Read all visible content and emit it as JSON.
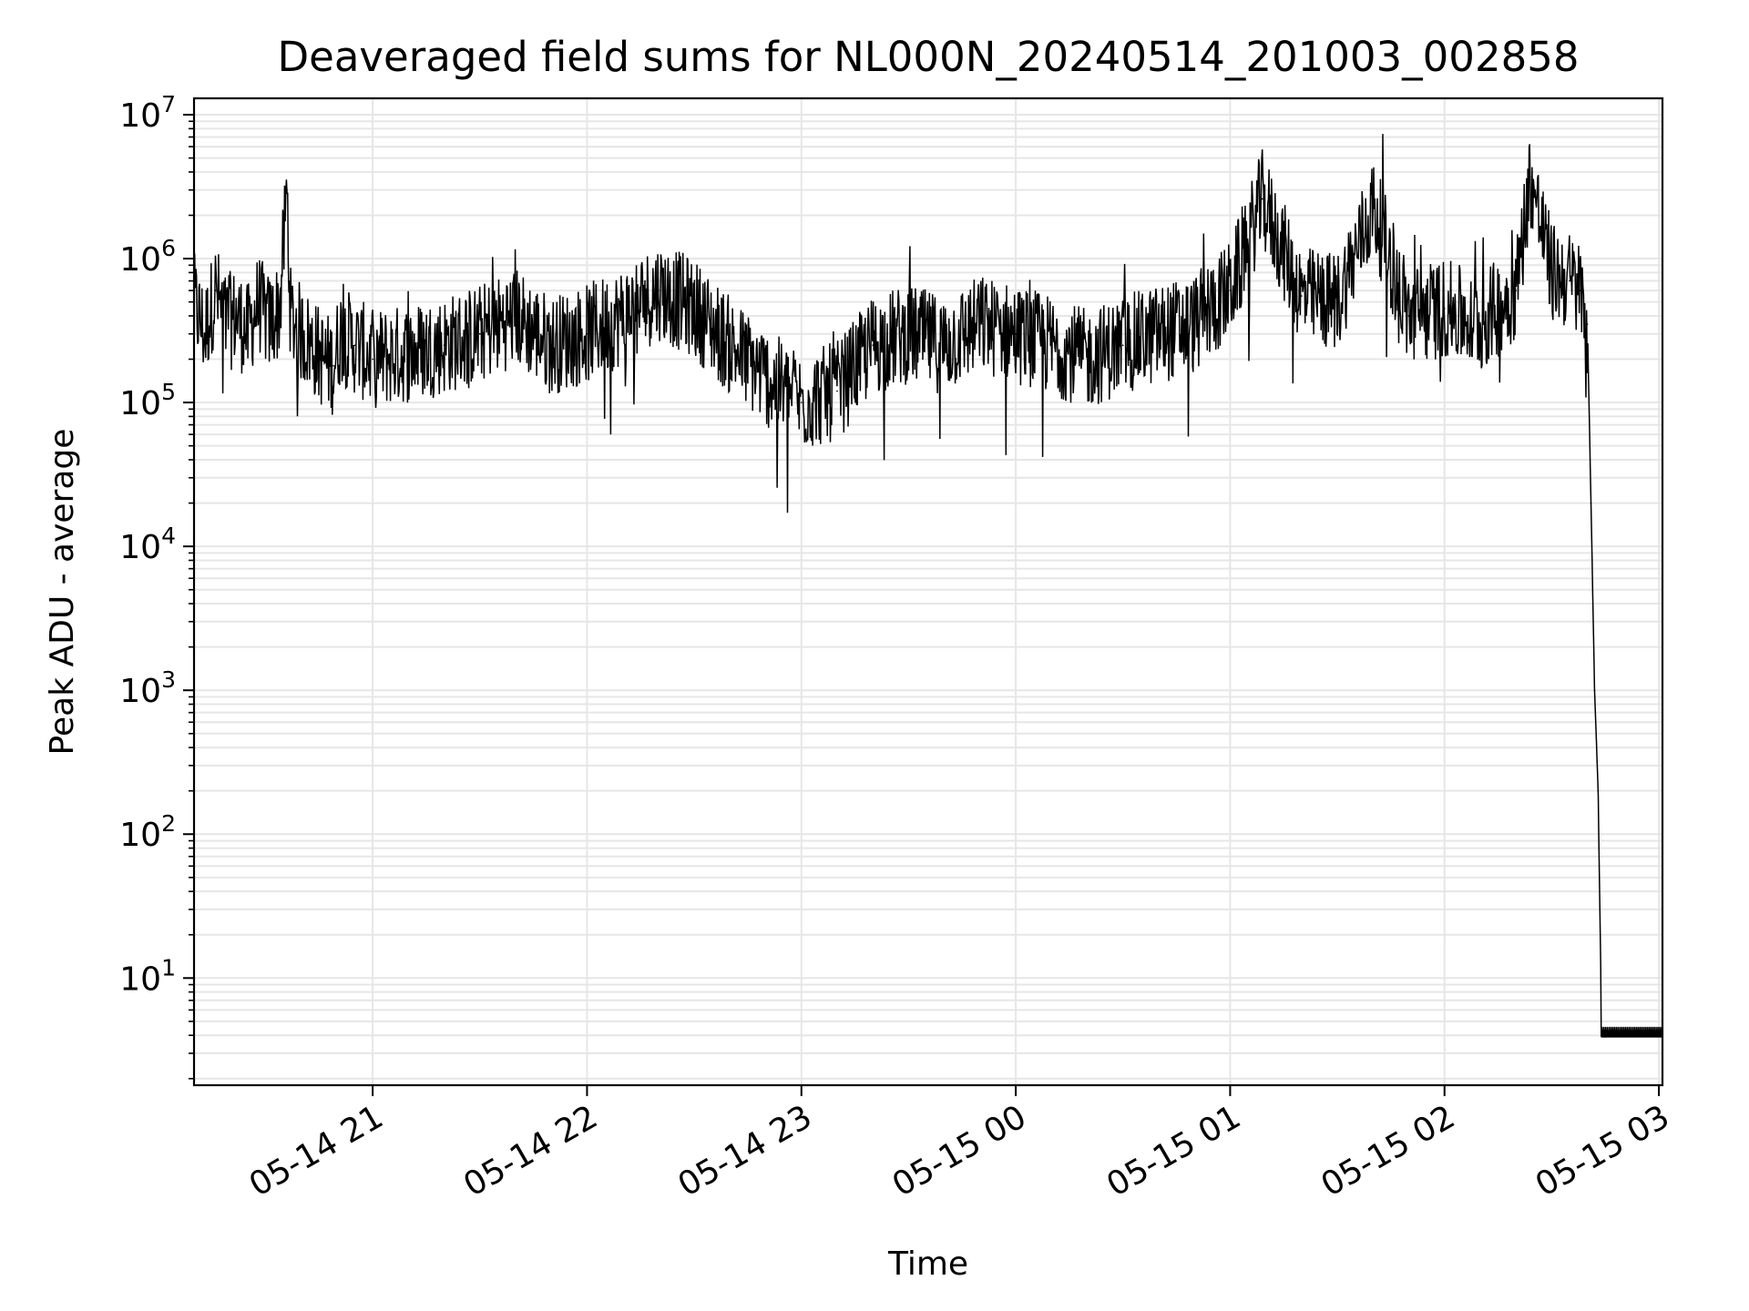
{
  "chart_data": {
    "type": "line",
    "title": "Deaveraged field sums for NL000N_20240514_201003_002858",
    "xlabel": "Time",
    "ylabel": "Peak ADU - average",
    "y_scale": "log",
    "ylim": [
      1.8,
      13000000
    ],
    "xlim": [
      "2024-05-14 20:10",
      "2024-05-15 03:01"
    ],
    "x_ticks": [
      {
        "label": "05-14 21",
        "value": "2024-05-14 21:00"
      },
      {
        "label": "05-14 22",
        "value": "2024-05-14 22:00"
      },
      {
        "label": "05-14 23",
        "value": "2024-05-14 23:00"
      },
      {
        "label": "05-15 00",
        "value": "2024-05-15 00:00"
      },
      {
        "label": "05-15 01",
        "value": "2024-05-15 01:00"
      },
      {
        "label": "05-15 02",
        "value": "2024-05-15 02:00"
      },
      {
        "label": "05-15 03",
        "value": "2024-05-15 03:00"
      }
    ],
    "y_ticks": [
      {
        "base": "10",
        "exp": "1",
        "value": 10
      },
      {
        "base": "10",
        "exp": "2",
        "value": 100
      },
      {
        "base": "10",
        "exp": "3",
        "value": 1000
      },
      {
        "base": "10",
        "exp": "4",
        "value": 10000
      },
      {
        "base": "10",
        "exp": "5",
        "value": 100000
      },
      {
        "base": "10",
        "exp": "6",
        "value": 1000000
      },
      {
        "base": "10",
        "exp": "7",
        "value": 10000000
      }
    ],
    "grid": true,
    "line_color": "#000000",
    "grid_color": "#e6e6e6",
    "series": [
      {
        "x": [
          "2024-05-14 20:10",
          "2024-05-14 20:13",
          "2024-05-14 20:16",
          "2024-05-14 20:19",
          "2024-05-14 20:22",
          "2024-05-14 20:25",
          "2024-05-14 20:28",
          "2024-05-14 20:31",
          "2024-05-14 20:34",
          "2024-05-14 20:36",
          "2024-05-14 20:37",
          "2024-05-14 20:40",
          "2024-05-14 20:43",
          "2024-05-14 20:46",
          "2024-05-14 20:49",
          "2024-05-14 20:51",
          "2024-05-14 20:55",
          "2024-05-14 21:00",
          "2024-05-14 21:10",
          "2024-05-14 21:20",
          "2024-05-14 21:30",
          "2024-05-14 21:40",
          "2024-05-14 21:50",
          "2024-05-14 22:00",
          "2024-05-14 22:10",
          "2024-05-14 22:20",
          "2024-05-14 22:30",
          "2024-05-14 22:40",
          "2024-05-14 22:50",
          "2024-05-14 23:00",
          "2024-05-14 23:10",
          "2024-05-14 23:20",
          "2024-05-14 23:30",
          "2024-05-14 23:40",
          "2024-05-14 23:50",
          "2024-05-15 00:00",
          "2024-05-15 00:10",
          "2024-05-15 00:20",
          "2024-05-15 00:30",
          "2024-05-15 00:40",
          "2024-05-15 00:50",
          "2024-05-15 01:00",
          "2024-05-15 01:09",
          "2024-05-15 01:20",
          "2024-05-15 01:30",
          "2024-05-15 01:40",
          "2024-05-15 01:50",
          "2024-05-15 02:00",
          "2024-05-15 02:10",
          "2024-05-15 02:20",
          "2024-05-15 02:24",
          "2024-05-15 02:30",
          "2024-05-15 02:35",
          "2024-05-15 02:38",
          "2024-05-15 02:40",
          "2024-05-15 02:41",
          "2024-05-15 02:42",
          "2024-05-15 02:43",
          "2024-05-15 02:44",
          "2024-05-15 02:45",
          "2024-05-15 03:01"
        ],
        "y": [
          500000,
          300000,
          600000,
          350000,
          400000,
          300000,
          500000,
          350000,
          450000,
          3000000,
          400000,
          300000,
          250000,
          200000,
          180000,
          300000,
          250000,
          200000,
          220000,
          250000,
          300000,
          400000,
          250000,
          300000,
          400000,
          600000,
          450000,
          250000,
          150000,
          100000,
          120000,
          250000,
          300000,
          250000,
          350000,
          300000,
          250000,
          200000,
          250000,
          300000,
          350000,
          600000,
          2600000,
          550000,
          500000,
          2300000,
          400000,
          450000,
          350000,
          600000,
          3700000,
          800000,
          700000,
          600000,
          350000,
          20000,
          1000,
          200,
          3.9,
          3.9,
          3.9
        ]
      }
    ]
  }
}
